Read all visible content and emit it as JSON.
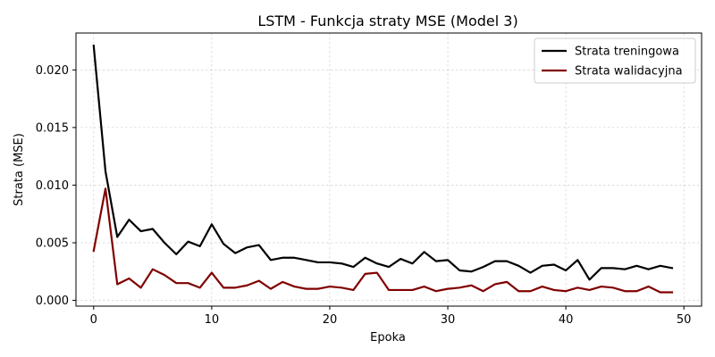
{
  "chart_data": {
    "type": "line",
    "title": "LSTM - Funkcja straty MSE (Model 3)",
    "xlabel": "Epoka",
    "ylabel": "Strata (MSE)",
    "xlim": [
      -1.5,
      51.5
    ],
    "ylim": [
      -0.0005,
      0.0232
    ],
    "xticks": [
      0,
      10,
      20,
      30,
      40,
      50
    ],
    "yticks": [
      0.0,
      0.005,
      0.01,
      0.015,
      0.02
    ],
    "ytick_labels": [
      "0.000",
      "0.005",
      "0.010",
      "0.015",
      "0.020"
    ],
    "grid": true,
    "legend_position": "top-right",
    "x": [
      0,
      1,
      2,
      3,
      4,
      5,
      6,
      7,
      8,
      9,
      10,
      11,
      12,
      13,
      14,
      15,
      16,
      17,
      18,
      19,
      20,
      21,
      22,
      23,
      24,
      25,
      26,
      27,
      28,
      29,
      30,
      31,
      32,
      33,
      34,
      35,
      36,
      37,
      38,
      39,
      40,
      41,
      42,
      43,
      44,
      45,
      46,
      47,
      48,
      49
    ],
    "series": [
      {
        "name": "Strata treningowa",
        "color": "#000000",
        "values": [
          0.0221,
          0.0112,
          0.0055,
          0.007,
          0.006,
          0.0062,
          0.005,
          0.004,
          0.0051,
          0.0047,
          0.0066,
          0.0049,
          0.0041,
          0.0046,
          0.0048,
          0.0035,
          0.0037,
          0.0037,
          0.0035,
          0.0033,
          0.0033,
          0.0032,
          0.0029,
          0.0037,
          0.0032,
          0.0029,
          0.0036,
          0.0032,
          0.0042,
          0.0034,
          0.0035,
          0.0026,
          0.0025,
          0.0029,
          0.0034,
          0.0034,
          0.003,
          0.0024,
          0.003,
          0.0031,
          0.0026,
          0.0035,
          0.0018,
          0.0028,
          0.0028,
          0.0027,
          0.003,
          0.0027,
          0.003,
          0.0028
        ]
      },
      {
        "name": "Strata walidacyjna",
        "color": "#800000",
        "values": [
          0.0043,
          0.0097,
          0.0014,
          0.0019,
          0.0011,
          0.0027,
          0.0022,
          0.0015,
          0.0015,
          0.0011,
          0.0024,
          0.0011,
          0.0011,
          0.0013,
          0.0017,
          0.001,
          0.0016,
          0.0012,
          0.001,
          0.001,
          0.0012,
          0.0011,
          0.0009,
          0.0023,
          0.0024,
          0.0009,
          0.0009,
          0.0009,
          0.0012,
          0.0008,
          0.001,
          0.0011,
          0.0013,
          0.0008,
          0.0014,
          0.0016,
          0.0008,
          0.0008,
          0.0012,
          0.0009,
          0.0008,
          0.0011,
          0.0009,
          0.0012,
          0.0011,
          0.0008,
          0.0008,
          0.0012,
          0.0007,
          0.0007
        ]
      }
    ]
  }
}
